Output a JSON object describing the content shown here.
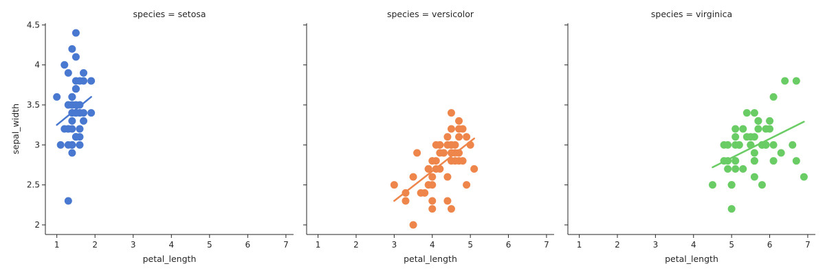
{
  "chart_data": [
    {
      "type": "scatter",
      "title": "species = setosa",
      "xlabel": "petal_length",
      "ylabel": "sepal_width",
      "xlim": [
        0.7,
        7.2
      ],
      "ylim": [
        1.88,
        4.52
      ],
      "xticks": [
        1,
        2,
        3,
        4,
        5,
        6,
        7
      ],
      "yticks": [
        2.0,
        2.5,
        3.0,
        3.5,
        4.0,
        4.5
      ],
      "grid": false,
      "color": "#4878d0",
      "points": [
        [
          1.4,
          3.5
        ],
        [
          1.4,
          3.0
        ],
        [
          1.3,
          3.2
        ],
        [
          1.5,
          3.1
        ],
        [
          1.4,
          3.6
        ],
        [
          1.7,
          3.9
        ],
        [
          1.4,
          3.4
        ],
        [
          1.5,
          3.4
        ],
        [
          1.4,
          2.9
        ],
        [
          1.5,
          3.1
        ],
        [
          1.5,
          3.7
        ],
        [
          1.6,
          3.4
        ],
        [
          1.4,
          3.0
        ],
        [
          1.1,
          3.0
        ],
        [
          1.2,
          4.0
        ],
        [
          1.5,
          4.4
        ],
        [
          1.3,
          3.9
        ],
        [
          1.4,
          3.5
        ],
        [
          1.7,
          3.8
        ],
        [
          1.5,
          3.8
        ],
        [
          1.7,
          3.4
        ],
        [
          1.5,
          3.7
        ],
        [
          1.0,
          3.6
        ],
        [
          1.7,
          3.3
        ],
        [
          1.9,
          3.4
        ],
        [
          1.6,
          3.0
        ],
        [
          1.6,
          3.4
        ],
        [
          1.5,
          3.5
        ],
        [
          1.4,
          3.4
        ],
        [
          1.6,
          3.2
        ],
        [
          1.6,
          3.1
        ],
        [
          1.5,
          3.4
        ],
        [
          1.5,
          4.1
        ],
        [
          1.4,
          4.2
        ],
        [
          1.5,
          3.1
        ],
        [
          1.2,
          3.2
        ],
        [
          1.3,
          3.5
        ],
        [
          1.4,
          3.6
        ],
        [
          1.3,
          3.0
        ],
        [
          1.5,
          3.4
        ],
        [
          1.3,
          3.5
        ],
        [
          1.3,
          2.3
        ],
        [
          1.3,
          3.2
        ],
        [
          1.6,
          3.5
        ],
        [
          1.9,
          3.8
        ],
        [
          1.4,
          3.0
        ],
        [
          1.6,
          3.8
        ],
        [
          1.4,
          3.2
        ],
        [
          1.5,
          3.7
        ],
        [
          1.4,
          3.3
        ]
      ],
      "regression": {
        "x": [
          1.0,
          1.9
        ],
        "y": [
          3.25,
          3.6
        ]
      }
    },
    {
      "type": "scatter",
      "title": "species = versicolor",
      "xlabel": "petal_length",
      "ylabel": "",
      "xlim": [
        0.7,
        7.2
      ],
      "ylim": [
        1.88,
        4.52
      ],
      "xticks": [
        1,
        2,
        3,
        4,
        5,
        6,
        7
      ],
      "yticks": [
        2.0,
        2.5,
        3.0,
        3.5,
        4.0,
        4.5
      ],
      "grid": false,
      "color": "#ee854a",
      "points": [
        [
          4.7,
          3.2
        ],
        [
          4.5,
          3.2
        ],
        [
          4.9,
          3.1
        ],
        [
          4.0,
          2.3
        ],
        [
          4.6,
          2.8
        ],
        [
          4.5,
          2.8
        ],
        [
          4.7,
          3.3
        ],
        [
          3.3,
          2.4
        ],
        [
          4.6,
          2.9
        ],
        [
          3.9,
          2.7
        ],
        [
          3.5,
          2.0
        ],
        [
          4.2,
          3.0
        ],
        [
          4.0,
          2.2
        ],
        [
          4.7,
          2.9
        ],
        [
          3.6,
          2.9
        ],
        [
          4.4,
          3.1
        ],
        [
          4.5,
          3.0
        ],
        [
          4.1,
          2.7
        ],
        [
          4.5,
          2.2
        ],
        [
          3.9,
          2.5
        ],
        [
          4.8,
          3.2
        ],
        [
          4.0,
          2.8
        ],
        [
          4.9,
          2.5
        ],
        [
          4.7,
          2.8
        ],
        [
          4.3,
          2.9
        ],
        [
          4.4,
          3.0
        ],
        [
          4.8,
          2.8
        ],
        [
          5.0,
          3.0
        ],
        [
          4.5,
          2.9
        ],
        [
          3.5,
          2.6
        ],
        [
          3.8,
          2.4
        ],
        [
          3.7,
          2.4
        ],
        [
          3.9,
          2.7
        ],
        [
          5.1,
          2.7
        ],
        [
          4.5,
          3.0
        ],
        [
          4.5,
          3.4
        ],
        [
          4.7,
          3.1
        ],
        [
          4.4,
          2.3
        ],
        [
          4.1,
          3.0
        ],
        [
          4.0,
          2.5
        ],
        [
          4.4,
          2.6
        ],
        [
          4.6,
          3.0
        ],
        [
          4.0,
          2.6
        ],
        [
          3.3,
          2.3
        ],
        [
          4.2,
          2.7
        ],
        [
          4.2,
          3.0
        ],
        [
          4.2,
          2.9
        ],
        [
          4.3,
          2.9
        ],
        [
          3.0,
          2.5
        ],
        [
          4.1,
          2.8
        ]
      ],
      "regression": {
        "x": [
          3.0,
          5.1
        ],
        "y": [
          2.3,
          3.08
        ]
      }
    },
    {
      "type": "scatter",
      "title": "species = virginica",
      "xlabel": "petal_length",
      "ylabel": "",
      "xlim": [
        0.7,
        7.2
      ],
      "ylim": [
        1.88,
        4.52
      ],
      "xticks": [
        1,
        2,
        3,
        4,
        5,
        6,
        7
      ],
      "yticks": [
        2.0,
        2.5,
        3.0,
        3.5,
        4.0,
        4.5
      ],
      "grid": false,
      "color": "#6acc64",
      "points": [
        [
          6.0,
          3.3
        ],
        [
          5.1,
          2.7
        ],
        [
          5.9,
          3.0
        ],
        [
          5.6,
          2.9
        ],
        [
          5.8,
          3.0
        ],
        [
          6.6,
          3.0
        ],
        [
          4.5,
          2.5
        ],
        [
          6.3,
          2.9
        ],
        [
          5.8,
          2.5
        ],
        [
          6.1,
          3.6
        ],
        [
          5.1,
          3.2
        ],
        [
          5.3,
          2.7
        ],
        [
          5.5,
          3.0
        ],
        [
          5.0,
          2.5
        ],
        [
          5.1,
          2.8
        ],
        [
          5.3,
          3.2
        ],
        [
          5.5,
          3.0
        ],
        [
          6.7,
          3.8
        ],
        [
          6.9,
          2.6
        ],
        [
          5.0,
          2.2
        ],
        [
          5.7,
          3.2
        ],
        [
          4.9,
          2.8
        ],
        [
          6.7,
          2.8
        ],
        [
          4.9,
          2.7
        ],
        [
          5.7,
          3.3
        ],
        [
          6.0,
          3.2
        ],
        [
          4.8,
          2.8
        ],
        [
          4.9,
          3.0
        ],
        [
          5.6,
          2.8
        ],
        [
          5.8,
          3.0
        ],
        [
          6.1,
          2.8
        ],
        [
          6.4,
          3.8
        ],
        [
          5.6,
          2.8
        ],
        [
          5.1,
          2.8
        ],
        [
          5.6,
          2.6
        ],
        [
          6.1,
          3.0
        ],
        [
          5.6,
          3.4
        ],
        [
          5.5,
          3.1
        ],
        [
          4.8,
          3.0
        ],
        [
          5.4,
          3.1
        ],
        [
          5.6,
          3.1
        ],
        [
          5.1,
          3.1
        ],
        [
          5.9,
          3.2
        ],
        [
          5.7,
          3.3
        ],
        [
          5.2,
          3.0
        ],
        [
          5.0,
          2.5
        ],
        [
          5.2,
          3.0
        ],
        [
          5.4,
          3.4
        ],
        [
          5.1,
          3.0
        ],
        [
          5.9,
          3.0
        ]
      ],
      "regression": {
        "x": [
          4.5,
          6.9
        ],
        "y": [
          2.72,
          3.29
        ]
      }
    }
  ]
}
